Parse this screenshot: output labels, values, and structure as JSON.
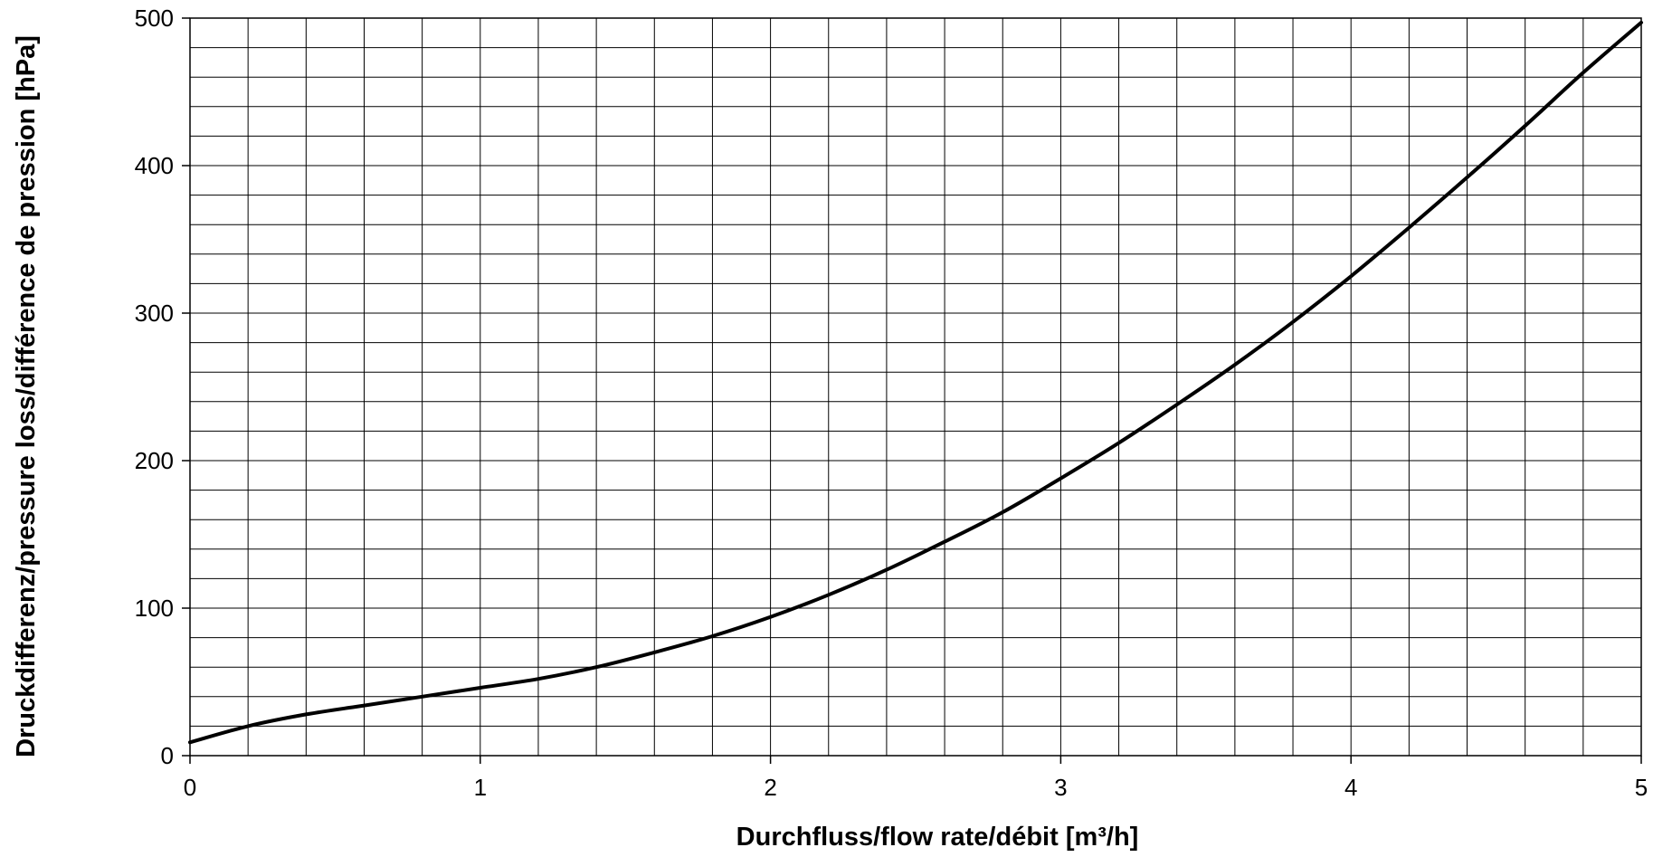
{
  "chart_data": {
    "type": "line",
    "title": "",
    "xlabel": "Durchfluss/flow rate/débit [m³/h]",
    "ylabel": "Druckdifferenz/pressure loss/différence de pression [hPa]",
    "xlim": [
      0,
      5
    ],
    "ylim": [
      0,
      500
    ],
    "x_ticks": [
      0,
      1,
      2,
      3,
      4,
      5
    ],
    "y_ticks": [
      0,
      100,
      200,
      300,
      400,
      500
    ],
    "x_tick_labels": [
      "0",
      "1",
      "2",
      "3",
      "4",
      "5"
    ],
    "y_tick_labels": [
      "0",
      "100",
      "200",
      "300",
      "400",
      "500"
    ],
    "x_minor_step": 0.2,
    "y_minor_step": 20,
    "grid": true,
    "legend": "none",
    "line_color": "#000000",
    "series": [
      {
        "x": [
          0,
          0.2,
          0.4,
          0.6,
          0.8,
          1.0,
          1.2,
          1.4,
          1.6,
          1.8,
          2.0,
          2.2,
          2.4,
          2.6,
          2.8,
          3.0,
          3.2,
          3.4,
          3.6,
          3.8,
          4.0,
          4.2,
          4.4,
          4.6,
          4.8,
          5.0
        ],
        "y": [
          9,
          20,
          28,
          34,
          40,
          46,
          52,
          60,
          70,
          81,
          94,
          109,
          126,
          145,
          165,
          188,
          212,
          238,
          265,
          294,
          325,
          358,
          392,
          427,
          463,
          497
        ]
      }
    ]
  }
}
